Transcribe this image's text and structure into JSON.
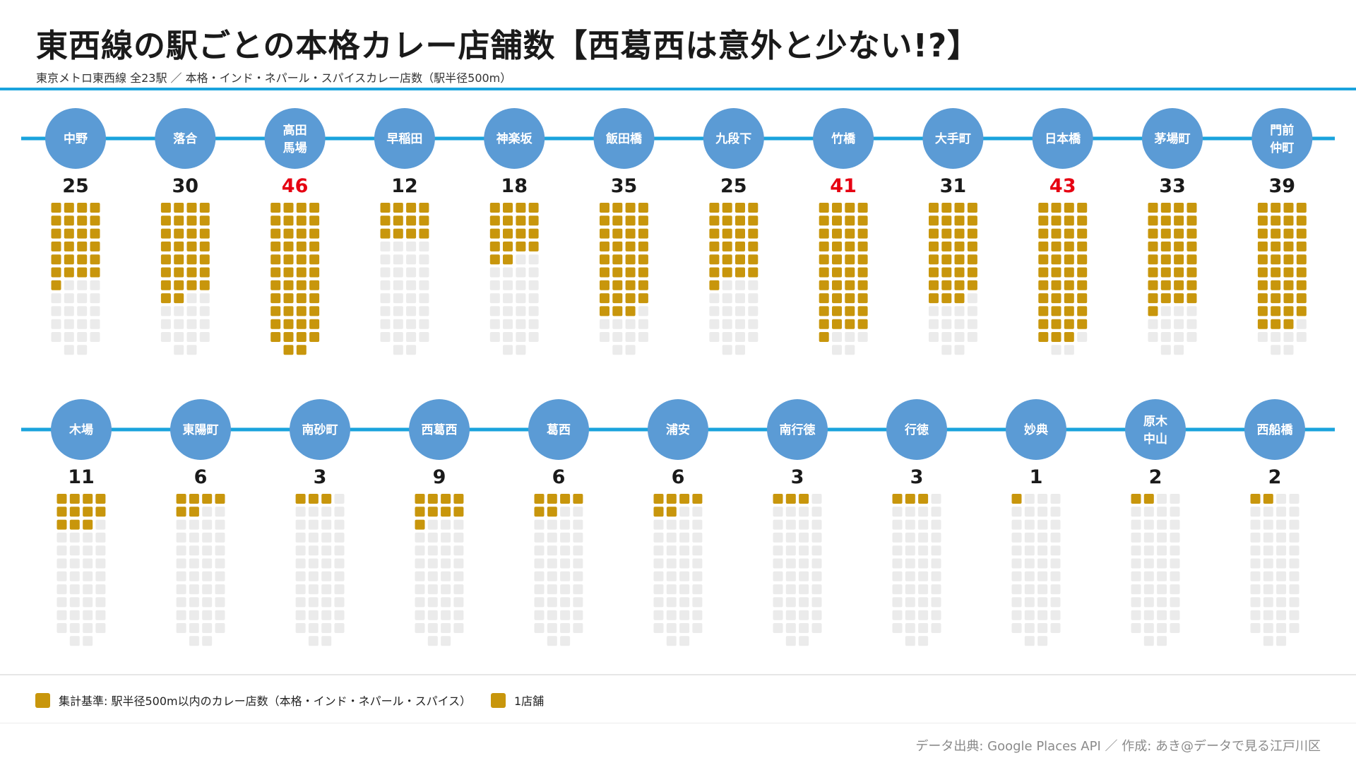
{
  "header": {
    "title": "東西線の駅ごとの本格カレー店舗数【西葛西は意外と少ない!?】",
    "subtitle": "東京メトロ東西線 全23駅 ／ 本格・インド・ネパール・スパイスカレー店数（駅半径500m）"
  },
  "chart_data": {
    "type": "waffle",
    "unit": "1店舗",
    "max_cells": 46,
    "colors": {
      "line": "#1aa3dd",
      "station": "#5b9bd5",
      "filled": "#c8960c",
      "empty": "#ebebeb",
      "highlight": "#e60012",
      "count": "#1a1a1a"
    },
    "highlighted_stations": [
      "高田馬場",
      "竹橋",
      "日本橋"
    ],
    "rows": [
      {
        "stations": [
          {
            "name": [
              "中野"
            ],
            "count": 25
          },
          {
            "name": [
              "落合"
            ],
            "count": 30
          },
          {
            "name": [
              "高田",
              "馬場"
            ],
            "count": 46
          },
          {
            "name": [
              "早稲田"
            ],
            "count": 12
          },
          {
            "name": [
              "神楽坂"
            ],
            "count": 18
          },
          {
            "name": [
              "飯田橋"
            ],
            "count": 35
          },
          {
            "name": [
              "九段下"
            ],
            "count": 25
          },
          {
            "name": [
              "竹橋"
            ],
            "count": 41
          },
          {
            "name": [
              "大手町"
            ],
            "count": 31
          },
          {
            "name": [
              "日本橋"
            ],
            "count": 43
          },
          {
            "name": [
              "茅場町"
            ],
            "count": 33
          },
          {
            "name": [
              "門前",
              "仲町"
            ],
            "count": 39
          }
        ]
      },
      {
        "stations": [
          {
            "name": [
              "木場"
            ],
            "count": 11
          },
          {
            "name": [
              "東陽町"
            ],
            "count": 6
          },
          {
            "name": [
              "南砂町"
            ],
            "count": 3
          },
          {
            "name": [
              "西葛西"
            ],
            "count": 9
          },
          {
            "name": [
              "葛西"
            ],
            "count": 6
          },
          {
            "name": [
              "浦安"
            ],
            "count": 6
          },
          {
            "name": [
              "南行徳"
            ],
            "count": 3
          },
          {
            "name": [
              "行徳"
            ],
            "count": 3
          },
          {
            "name": [
              "妙典"
            ],
            "count": 1
          },
          {
            "name": [
              "原木",
              "中山"
            ],
            "count": 2
          },
          {
            "name": [
              "西船橋"
            ],
            "count": 2
          }
        ]
      }
    ]
  },
  "legend": {
    "criteria": "集計基準: 駅半径500m以内のカレー店数（本格・インド・ネパール・スパイス）",
    "unit": "1店舗"
  },
  "source": "データ出典: Google Places API ／ 作成: あき@データで見る江戸川区"
}
